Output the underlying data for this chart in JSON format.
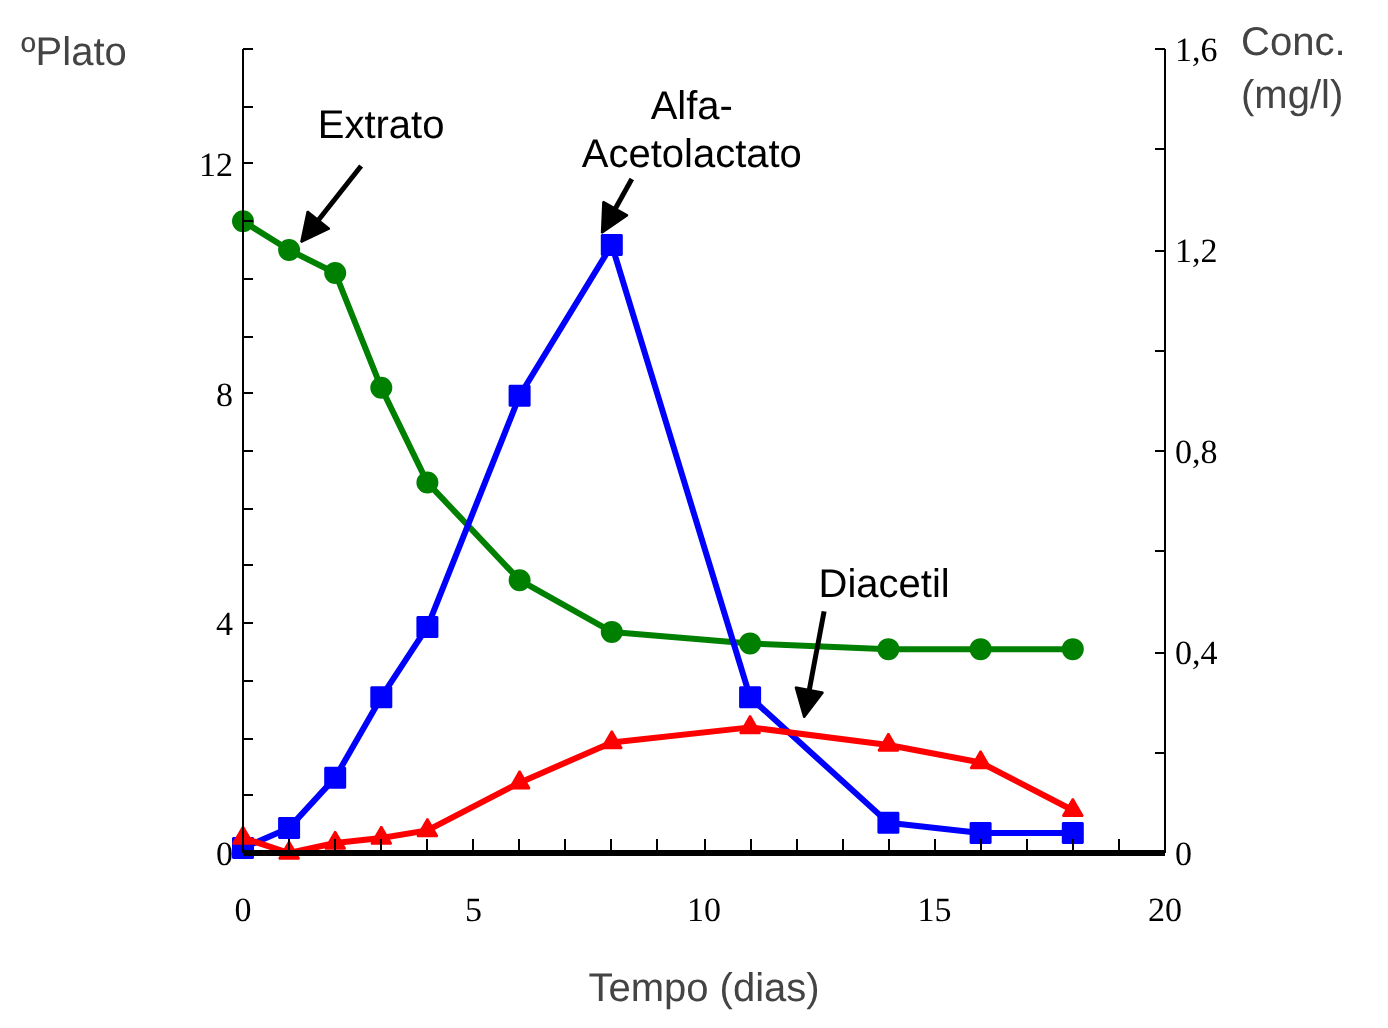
{
  "chart_data": {
    "type": "line",
    "xlabel": "Tempo (dias)",
    "ylabel": "ºPlato",
    "y2label": "Conc.\n(mg/l)",
    "xlim": [
      0,
      20
    ],
    "xticks": [
      0,
      {
        "value": 1,
        "label": null
      },
      {
        "value": 2,
        "label": null
      },
      {
        "value": 3,
        "label": null
      },
      {
        "value": 4,
        "label": null
      },
      5,
      {
        "value": 6,
        "label": null
      },
      {
        "value": 7,
        "label": null
      },
      {
        "value": 8,
        "label": null
      },
      {
        "value": 9,
        "label": null
      },
      10,
      {
        "value": 11,
        "label": null
      },
      {
        "value": 12,
        "label": null
      },
      {
        "value": 13,
        "label": null
      },
      {
        "value": 14,
        "label": null
      },
      15,
      {
        "value": 16,
        "label": null
      },
      {
        "value": 17,
        "label": null
      },
      {
        "value": 18,
        "label": null
      },
      {
        "value": 19,
        "label": null
      },
      20
    ],
    "ylim": [
      0,
      14
    ],
    "yticks": [
      0,
      {
        "value": 1,
        "label": null
      },
      {
        "value": 2,
        "label": null
      },
      {
        "value": 3,
        "label": null
      },
      4,
      {
        "value": 5,
        "label": null
      },
      {
        "value": 6,
        "label": null
      },
      {
        "value": 7,
        "label": null
      },
      8,
      {
        "value": 9,
        "label": null
      },
      {
        "value": 10,
        "label": null
      },
      {
        "value": 11,
        "label": null
      },
      12,
      {
        "value": 13,
        "label": null
      },
      {
        "value": 14,
        "label": null
      }
    ],
    "y2lim": [
      0,
      1.6
    ],
    "y2ticks": [
      {
        "value": 0,
        "label": "0"
      },
      {
        "value": 0.2,
        "label": null
      },
      {
        "value": 0.4,
        "label": "0,4"
      },
      {
        "value": 0.6,
        "label": null
      },
      {
        "value": 0.8,
        "label": "0,8"
      },
      {
        "value": 1.0,
        "label": null
      },
      {
        "value": 1.2,
        "label": "1,2"
      },
      {
        "value": 1.4,
        "label": null
      },
      {
        "value": 1.6,
        "label": "1,6"
      }
    ],
    "x": [
      0,
      1,
      2,
      3,
      4,
      6,
      8,
      11,
      14,
      16,
      18
    ],
    "legend": false,
    "series": [
      {
        "name": "Extrato",
        "color": "#008000",
        "marker": "circle",
        "values": [
          11.0,
          10.5,
          10.1,
          8.1,
          6.45,
          4.75,
          3.85,
          3.65,
          3.55,
          3.55,
          3.55
        ]
      },
      {
        "name": "Alfa-\nAcetolactato",
        "color": "#0000ff",
        "marker": "square",
        "axis": "y2",
        "values": [
          0.01,
          0.05,
          0.15,
          0.31,
          0.45,
          0.91,
          1.21,
          0.31,
          0.06,
          0.04,
          0.04
        ]
      },
      {
        "name": "Diacetil",
        "color": "#ff0000",
        "marker": "triangle",
        "axis": "y2",
        "values": [
          0.03,
          0.0,
          0.02,
          0.03,
          0.045,
          0.14,
          0.22,
          0.25,
          0.215,
          0.18,
          0.085
        ]
      }
    ]
  }
}
